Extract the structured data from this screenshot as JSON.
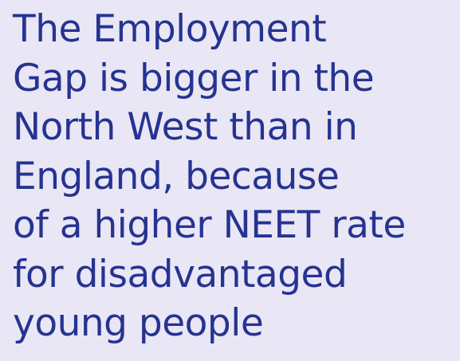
{
  "heading": {
    "lines": [
      "The Employment",
      "Gap is bigger in the",
      "North West than in",
      "England, because",
      "of a higher NEET rate",
      "for disadvantaged",
      "young people"
    ]
  }
}
